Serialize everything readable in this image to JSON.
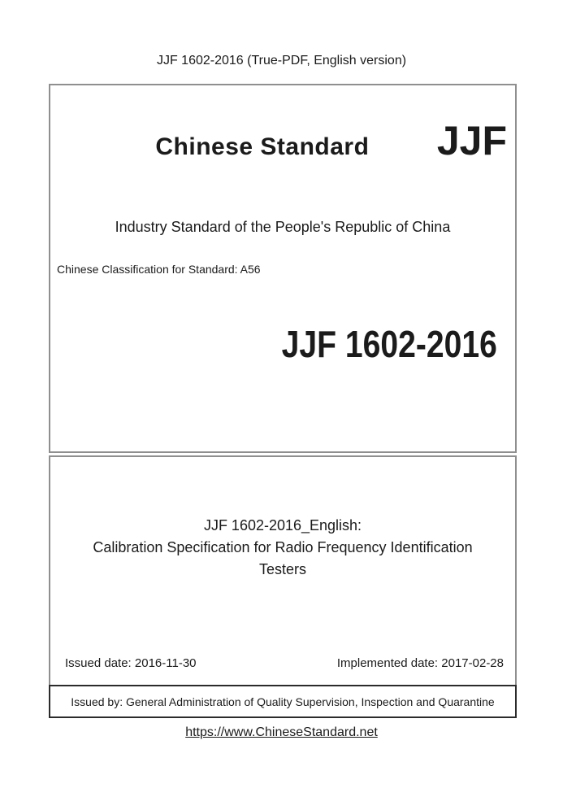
{
  "page": {
    "header_label": "JJF 1602-2016 (True-PDF, English version)"
  },
  "cover": {
    "brand_title": "Chinese Standard",
    "logo_text": "JJF",
    "standard_type": "Industry Standard of the People's Republic of China",
    "classification": "Chinese Classification for Standard: A56",
    "standard_code": "JJF 1602-2016"
  },
  "title_block": {
    "line1": "JJF 1602-2016_English:",
    "line2": "Calibration Specification for Radio Frequency Identification",
    "line3": "Testers"
  },
  "dates": {
    "issued": "Issued date: 2016-11-30",
    "implemented": "Implemented date: 2017-02-28"
  },
  "issuer_label": "Issued by: General Administration of Quality Supervision, Inspection and Quarantine",
  "footer": {
    "link_text": "https://www.ChineseStandard.net"
  },
  "colors": {
    "border_gray": "#8f8f8f",
    "border_dark": "#2b2b2b",
    "text": "#1b1b1b"
  }
}
